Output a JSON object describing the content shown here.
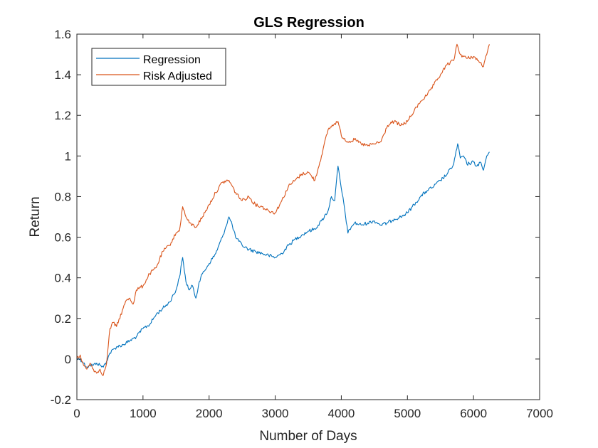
{
  "chart_data": {
    "type": "line",
    "title": "GLS Regression",
    "xlabel": "Number of Days",
    "ylabel": "Return",
    "xlim": [
      0,
      7000
    ],
    "ylim": [
      -0.2,
      1.6
    ],
    "xticks": [
      0,
      1000,
      2000,
      3000,
      4000,
      5000,
      6000,
      7000
    ],
    "yticks": [
      -0.2,
      0,
      0.2,
      0.4,
      0.6,
      0.8,
      1,
      1.2,
      1.4,
      1.6
    ],
    "xtick_labels": [
      "0",
      "1000",
      "2000",
      "3000",
      "4000",
      "5000",
      "6000",
      "7000"
    ],
    "ytick_labels": [
      "-0.2",
      "0",
      "0.2",
      "0.4",
      "0.6",
      "0.8",
      "1",
      "1.2",
      "1.4",
      "1.6"
    ],
    "grid": false,
    "legend_location": "top-left",
    "series": [
      {
        "name": "Regression",
        "color": "#0072BD",
        "x": [
          0,
          50,
          100,
          150,
          200,
          250,
          300,
          350,
          400,
          450,
          500,
          600,
          700,
          800,
          900,
          1000,
          1100,
          1200,
          1300,
          1400,
          1500,
          1550,
          1600,
          1650,
          1700,
          1750,
          1800,
          1850,
          1900,
          2000,
          2100,
          2200,
          2300,
          2350,
          2400,
          2450,
          2500,
          2600,
          2700,
          2800,
          2900,
          3000,
          3100,
          3200,
          3300,
          3400,
          3500,
          3600,
          3700,
          3800,
          3850,
          3900,
          3950,
          4000,
          4050,
          4100,
          4150,
          4200,
          4300,
          4400,
          4500,
          4600,
          4700,
          4800,
          4900,
          5000,
          5100,
          5200,
          5300,
          5400,
          5500,
          5600,
          5700,
          5760,
          5800,
          5850,
          5900,
          6000,
          6050,
          6100,
          6150,
          6200,
          6240
        ],
        "y": [
          0.0,
          0.0,
          -0.02,
          -0.04,
          -0.03,
          -0.03,
          -0.02,
          -0.03,
          -0.04,
          -0.01,
          0.03,
          0.06,
          0.07,
          0.09,
          0.11,
          0.15,
          0.17,
          0.22,
          0.25,
          0.28,
          0.34,
          0.4,
          0.5,
          0.38,
          0.34,
          0.36,
          0.3,
          0.38,
          0.42,
          0.47,
          0.52,
          0.6,
          0.7,
          0.66,
          0.6,
          0.58,
          0.56,
          0.54,
          0.53,
          0.52,
          0.51,
          0.5,
          0.52,
          0.56,
          0.59,
          0.61,
          0.63,
          0.64,
          0.68,
          0.73,
          0.8,
          0.78,
          0.95,
          0.84,
          0.74,
          0.62,
          0.65,
          0.67,
          0.66,
          0.67,
          0.68,
          0.66,
          0.67,
          0.69,
          0.7,
          0.72,
          0.76,
          0.8,
          0.83,
          0.85,
          0.88,
          0.91,
          0.96,
          1.06,
          0.99,
          1.0,
          0.96,
          0.97,
          0.95,
          0.97,
          0.93,
          1.0,
          1.02
        ]
      },
      {
        "name": "Risk Adjusted",
        "color": "#D95319",
        "x": [
          0,
          50,
          100,
          150,
          200,
          250,
          300,
          350,
          400,
          450,
          500,
          550,
          600,
          700,
          750,
          800,
          850,
          900,
          1000,
          1100,
          1200,
          1300,
          1400,
          1500,
          1550,
          1600,
          1650,
          1700,
          1800,
          1900,
          2000,
          2100,
          2200,
          2300,
          2400,
          2500,
          2600,
          2700,
          2800,
          2900,
          3000,
          3100,
          3200,
          3300,
          3400,
          3500,
          3600,
          3700,
          3800,
          3900,
          3950,
          4000,
          4100,
          4200,
          4300,
          4400,
          4500,
          4600,
          4700,
          4800,
          4900,
          5000,
          5100,
          5200,
          5300,
          5400,
          5500,
          5600,
          5700,
          5750,
          5800,
          5900,
          6000,
          6100,
          6150,
          6200,
          6240
        ],
        "y": [
          0.0,
          0.02,
          -0.03,
          -0.05,
          -0.02,
          -0.05,
          -0.07,
          -0.05,
          -0.08,
          -0.02,
          0.15,
          0.18,
          0.16,
          0.25,
          0.29,
          0.3,
          0.27,
          0.34,
          0.36,
          0.42,
          0.45,
          0.53,
          0.56,
          0.62,
          0.63,
          0.75,
          0.7,
          0.67,
          0.65,
          0.7,
          0.76,
          0.82,
          0.87,
          0.88,
          0.82,
          0.78,
          0.8,
          0.76,
          0.75,
          0.73,
          0.72,
          0.78,
          0.85,
          0.88,
          0.91,
          0.92,
          0.88,
          1.0,
          1.13,
          1.16,
          1.17,
          1.1,
          1.07,
          1.08,
          1.06,
          1.05,
          1.06,
          1.07,
          1.15,
          1.17,
          1.15,
          1.17,
          1.22,
          1.27,
          1.3,
          1.35,
          1.4,
          1.45,
          1.47,
          1.55,
          1.5,
          1.48,
          1.49,
          1.46,
          1.44,
          1.5,
          1.55
        ]
      }
    ]
  }
}
